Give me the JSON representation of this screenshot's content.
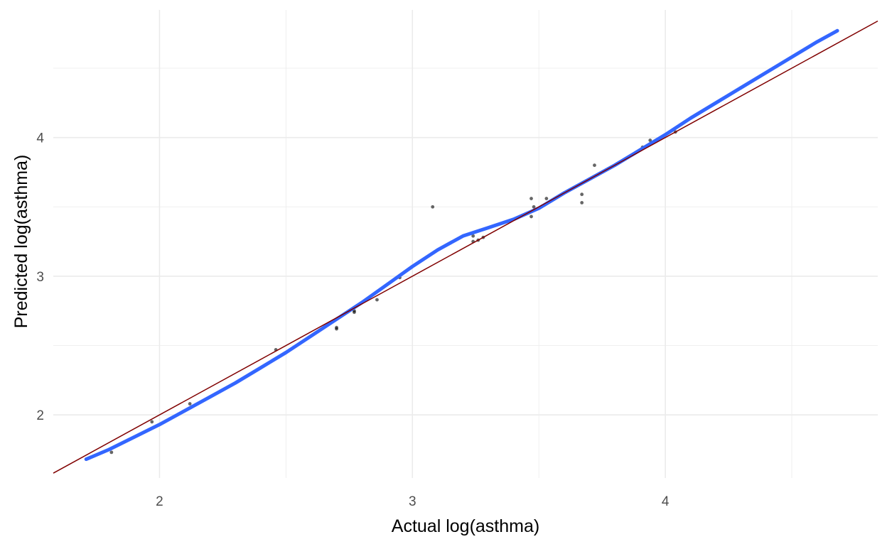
{
  "chart_data": {
    "type": "scatter",
    "title": "",
    "xlabel": "Actual log(asthma)",
    "ylabel": "Predicted log(asthma)",
    "xlim": [
      1.58,
      4.84
    ],
    "ylim": [
      1.545,
      4.92
    ],
    "grid": true,
    "legend": "none",
    "x_major_ticks": [
      2,
      3,
      4
    ],
    "x_minor_ticks": [
      2.5,
      3.5,
      4.5
    ],
    "y_major_ticks": [
      2,
      3,
      4
    ],
    "y_minor_ticks": [
      2.5,
      3.5,
      4.5
    ],
    "x_tick_labels": [
      "2",
      "3",
      "4"
    ],
    "y_tick_labels": [
      "2",
      "3",
      "4"
    ],
    "points": [
      {
        "x": 1.71,
        "y": 1.68
      },
      {
        "x": 1.81,
        "y": 1.73
      },
      {
        "x": 1.97,
        "y": 1.95
      },
      {
        "x": 2.12,
        "y": 2.08
      },
      {
        "x": 2.46,
        "y": 2.47
      },
      {
        "x": 2.7,
        "y": 2.63
      },
      {
        "x": 2.7,
        "y": 2.62
      },
      {
        "x": 2.77,
        "y": 2.75
      },
      {
        "x": 2.77,
        "y": 2.74
      },
      {
        "x": 2.86,
        "y": 2.83
      },
      {
        "x": 2.95,
        "y": 2.99
      },
      {
        "x": 3.08,
        "y": 3.5
      },
      {
        "x": 3.24,
        "y": 3.25
      },
      {
        "x": 3.24,
        "y": 3.29
      },
      {
        "x": 3.26,
        "y": 3.26
      },
      {
        "x": 3.28,
        "y": 3.28
      },
      {
        "x": 3.47,
        "y": 3.56
      },
      {
        "x": 3.47,
        "y": 3.43
      },
      {
        "x": 3.48,
        "y": 3.5
      },
      {
        "x": 3.53,
        "y": 3.56
      },
      {
        "x": 3.67,
        "y": 3.59
      },
      {
        "x": 3.67,
        "y": 3.53
      },
      {
        "x": 3.72,
        "y": 3.8
      },
      {
        "x": 3.91,
        "y": 3.93
      },
      {
        "x": 3.94,
        "y": 3.98
      },
      {
        "x": 4.04,
        "y": 4.04
      },
      {
        "x": 4.68,
        "y": 4.77
      }
    ],
    "series": [
      {
        "kind": "smooth",
        "color": "#3366ff",
        "x": [
          1.71,
          1.8,
          1.9,
          2.0,
          2.1,
          2.2,
          2.3,
          2.4,
          2.5,
          2.6,
          2.7,
          2.8,
          2.9,
          3.0,
          3.1,
          3.2,
          3.3,
          3.4,
          3.5,
          3.6,
          3.7,
          3.8,
          3.9,
          4.0,
          4.1,
          4.2,
          4.3,
          4.4,
          4.5,
          4.6,
          4.68
        ],
        "y": [
          1.68,
          1.75,
          1.84,
          1.93,
          2.03,
          2.13,
          2.23,
          2.34,
          2.45,
          2.57,
          2.69,
          2.81,
          2.94,
          3.07,
          3.19,
          3.29,
          3.35,
          3.41,
          3.49,
          3.6,
          3.7,
          3.8,
          3.91,
          4.02,
          4.14,
          4.25,
          4.36,
          4.47,
          4.58,
          4.69,
          4.77
        ]
      },
      {
        "kind": "reference",
        "color": "#800000",
        "x": [
          1.58,
          4.84
        ],
        "y": [
          1.58,
          4.84
        ]
      }
    ],
    "colors": {
      "points": "#000000",
      "smooth": "#3366ff",
      "reference": "#800000",
      "grid": "#ebebeb"
    }
  }
}
